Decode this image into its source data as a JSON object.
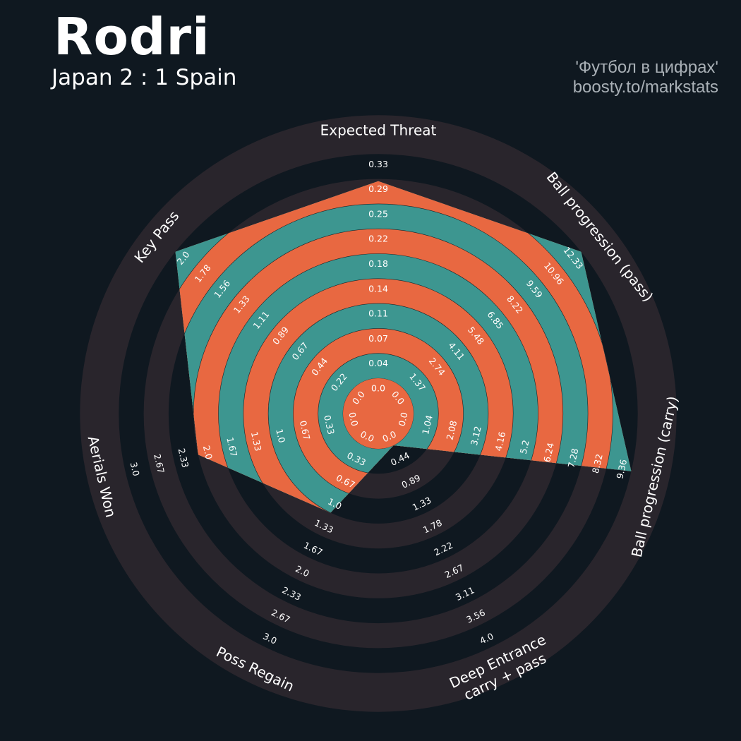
{
  "header": {
    "title": "Rodri",
    "subtitle": "Japan 2 : 1 Spain",
    "credit_line1": "'Футбол в цифрах'",
    "credit_line2": "boosty.to/markstats"
  },
  "colors": {
    "background": "#0f1820",
    "ring_dark": "#29252c",
    "ring_alt": "#0f1820",
    "player_fill": "#3d9690",
    "ring_highlight": "#e86841",
    "text": "#ffffff",
    "credit": "#a9b0b6"
  },
  "chart_data": {
    "type": "radar",
    "title": "Rodri",
    "params": [
      {
        "label": "Expected Threat",
        "ticks": [
          "0.0",
          "0.04",
          "0.07",
          "0.11",
          "0.14",
          "0.18",
          "0.22",
          "0.25",
          "0.29",
          "0.33"
        ],
        "min": 0.0,
        "max": 0.33,
        "value": 0.29
      },
      {
        "label": "Ball progression (pass)",
        "ticks": [
          "0.0",
          "1.37",
          "2.74",
          "4.11",
          "5.48",
          "6.85",
          "8.22",
          "9.59",
          "10.96",
          "12.33"
        ],
        "min": 0.0,
        "max": 12.33,
        "value": 12.33
      },
      {
        "label": "Ball progression (carry)",
        "ticks": [
          "0.0",
          "1.04",
          "2.08",
          "3.12",
          "4.16",
          "5.2",
          "6.24",
          "7.28",
          "8.32",
          "9.36"
        ],
        "min": 0.0,
        "max": 9.36,
        "value": 9.36
      },
      {
        "label": "Deep Entrance\ncarry + pass",
        "ticks": [
          "0.0",
          "0.44",
          "0.89",
          "1.33",
          "1.78",
          "2.22",
          "2.67",
          "3.11",
          "3.56",
          "4.0"
        ],
        "min": 0.0,
        "max": 4.0,
        "value": 0.0
      },
      {
        "label": "Poss Regain",
        "ticks": [
          "0.0",
          "0.33",
          "0.67",
          "1.0",
          "1.33",
          "1.67",
          "2.0",
          "2.33",
          "2.67",
          "3.0"
        ],
        "min": 0.0,
        "max": 3.0,
        "value": 1.0
      },
      {
        "label": "Aerials Won",
        "ticks": [
          "0.0",
          "0.33",
          "0.67",
          "1.0",
          "1.33",
          "1.67",
          "2.0",
          "2.33",
          "2.67",
          "3.0"
        ],
        "min": 0.0,
        "max": 3.0,
        "value": 2.0
      },
      {
        "label": "Key Pass",
        "ticks": [
          "0.0",
          "0.22",
          "0.44",
          "0.67",
          "0.89",
          "1.11",
          "1.33",
          "1.56",
          "1.78",
          "2.0"
        ],
        "min": 0.0,
        "max": 2.0,
        "value": 2.0
      }
    ],
    "grid": true,
    "legend": "none"
  }
}
